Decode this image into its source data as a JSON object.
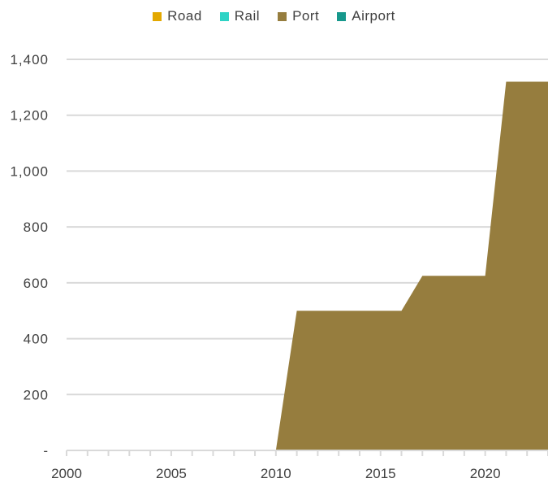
{
  "chart_data": {
    "type": "area",
    "title": "",
    "xlabel": "",
    "ylabel": "",
    "x": [
      2000,
      2001,
      2002,
      2003,
      2004,
      2005,
      2006,
      2007,
      2008,
      2009,
      2010,
      2011,
      2012,
      2013,
      2014,
      2015,
      2016,
      2017,
      2018,
      2019,
      2020,
      2021,
      2022,
      2023
    ],
    "xlim": [
      2000,
      2023
    ],
    "ylim": [
      0,
      1400
    ],
    "x_ticks": [
      2000,
      2005,
      2010,
      2015,
      2020
    ],
    "x_tick_labels": [
      "2000",
      "2005",
      "2010",
      "2015",
      "2020"
    ],
    "y_ticks": [
      0,
      200,
      400,
      600,
      800,
      1000,
      1200,
      1400
    ],
    "y_tick_labels": [
      "-",
      "200",
      "400",
      "600",
      "800",
      "1,000",
      "1,200",
      "1,400"
    ],
    "stacked": true,
    "grid": "horizontal",
    "legend_position": "top",
    "series": [
      {
        "name": "Road",
        "color": "#E3A800",
        "values": [
          0,
          0,
          0,
          0,
          0,
          0,
          0,
          0,
          0,
          0,
          0,
          0,
          0,
          0,
          0,
          0,
          0,
          0,
          0,
          0,
          0,
          0,
          0,
          0
        ]
      },
      {
        "name": "Rail",
        "color": "#2ED3C5",
        "values": [
          0,
          0,
          0,
          0,
          0,
          0,
          0,
          0,
          0,
          0,
          0,
          0,
          0,
          0,
          0,
          0,
          0,
          0,
          0,
          0,
          0,
          0,
          0,
          0
        ]
      },
      {
        "name": "Port",
        "color": "#967D3E",
        "values": [
          0,
          0,
          0,
          0,
          0,
          0,
          0,
          0,
          0,
          0,
          0,
          500,
          500,
          500,
          500,
          500,
          500,
          625,
          625,
          625,
          625,
          1320,
          1320,
          1320
        ]
      },
      {
        "name": "Airport",
        "color": "#17988C",
        "values": [
          0,
          0,
          0,
          0,
          0,
          0,
          0,
          0,
          0,
          0,
          0,
          0,
          0,
          0,
          0,
          0,
          0,
          0,
          0,
          0,
          0,
          0,
          0,
          0
        ]
      }
    ]
  }
}
